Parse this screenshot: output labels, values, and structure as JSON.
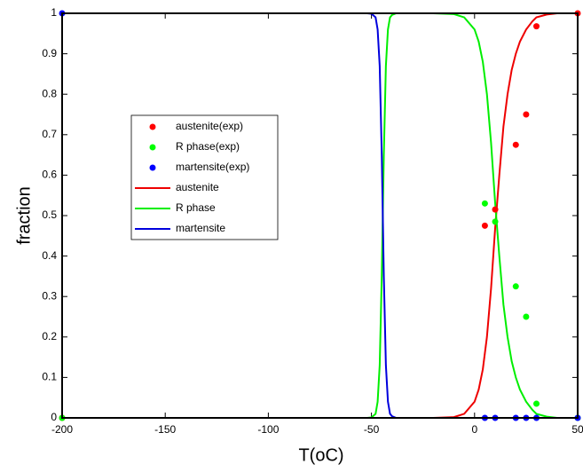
{
  "chart_data": {
    "type": "line",
    "xlabel": "T(oC)",
    "ylabel": "fraction",
    "xlim": [
      -200,
      50
    ],
    "xticks": [
      -200,
      -150,
      -100,
      -50,
      0,
      50
    ],
    "ylim": [
      0,
      1
    ],
    "yticks": [
      0,
      0.1,
      0.2,
      0.3,
      0.4,
      0.5,
      0.6,
      0.7,
      0.8,
      0.9,
      1
    ],
    "grid": false,
    "legend": "center-left",
    "series": [
      {
        "name": "austenite(exp)",
        "mode": "markers",
        "color": "#ff0000",
        "x": [
          -200,
          5,
          10,
          20,
          25,
          30,
          50
        ],
        "values": [
          0,
          0.475,
          0.515,
          0.675,
          0.75,
          0.968,
          1
        ]
      },
      {
        "name": "R phase(exp)",
        "mode": "markers",
        "color": "#00ff00",
        "x": [
          -200,
          5,
          10,
          20,
          25,
          30,
          50
        ],
        "values": [
          0,
          0.53,
          0.485,
          0.325,
          0.25,
          0.035,
          0
        ]
      },
      {
        "name": "martensite(exp)",
        "mode": "markers",
        "color": "#0000ff",
        "x": [
          -200,
          5,
          10,
          20,
          25,
          30,
          50
        ],
        "values": [
          1,
          0,
          0,
          0,
          0,
          0,
          0
        ]
      },
      {
        "name": "austenite",
        "mode": "line",
        "color": "#ee0000",
        "x": [
          -70,
          -60,
          -52,
          -50,
          -48,
          -47,
          -46,
          -45,
          -44,
          -43,
          -42,
          -41,
          -40,
          -38,
          -35,
          -30,
          -20,
          -10,
          -5,
          0,
          2,
          4,
          6,
          8,
          10,
          12,
          14,
          16,
          18,
          20,
          22,
          25,
          28,
          30,
          35,
          40,
          45,
          50
        ],
        "values": [
          0,
          0,
          0,
          0,
          0,
          0,
          0,
          0,
          0,
          0,
          0,
          0,
          0,
          0,
          0,
          0,
          0,
          0.002,
          0.01,
          0.04,
          0.07,
          0.12,
          0.2,
          0.32,
          0.47,
          0.6,
          0.72,
          0.8,
          0.86,
          0.9,
          0.93,
          0.96,
          0.98,
          0.99,
          0.997,
          1,
          1,
          1
        ]
      },
      {
        "name": "R phase",
        "mode": "line",
        "color": "#00ee00",
        "x": [
          -70,
          -60,
          -52,
          -50,
          -48,
          -47,
          -46,
          -45,
          -44,
          -43,
          -42,
          -41,
          -40,
          -38,
          -35,
          -30,
          -20,
          -10,
          -5,
          0,
          2,
          4,
          6,
          8,
          10,
          12,
          14,
          16,
          18,
          20,
          22,
          25,
          28,
          30,
          35,
          40,
          45,
          50
        ],
        "values": [
          0,
          0,
          0,
          0.001,
          0.01,
          0.04,
          0.13,
          0.35,
          0.65,
          0.87,
          0.96,
          0.99,
          0.996,
          1,
          1,
          1,
          1,
          0.998,
          0.99,
          0.96,
          0.93,
          0.88,
          0.8,
          0.68,
          0.53,
          0.4,
          0.28,
          0.2,
          0.14,
          0.1,
          0.07,
          0.04,
          0.02,
          0.01,
          0.003,
          0,
          0,
          0
        ]
      },
      {
        "name": "martensite",
        "mode": "line",
        "color": "#0000dd",
        "x": [
          -70,
          -60,
          -52,
          -50,
          -48,
          -47,
          -46,
          -45,
          -44,
          -43,
          -42,
          -41,
          -40,
          -38,
          -35,
          -30,
          -20,
          -10,
          -5,
          0,
          2,
          4,
          6,
          8,
          10,
          12,
          14,
          16,
          18,
          20,
          22,
          25,
          28,
          30,
          35,
          40,
          45,
          50
        ],
        "values": [
          1,
          1,
          1,
          0.999,
          0.99,
          0.96,
          0.87,
          0.65,
          0.35,
          0.13,
          0.04,
          0.01,
          0.004,
          0,
          0,
          0,
          0,
          0,
          0,
          0,
          0,
          0,
          0,
          0,
          0,
          0,
          0,
          0,
          0,
          0,
          0,
          0,
          0,
          0,
          0,
          0,
          0,
          0
        ]
      }
    ]
  }
}
